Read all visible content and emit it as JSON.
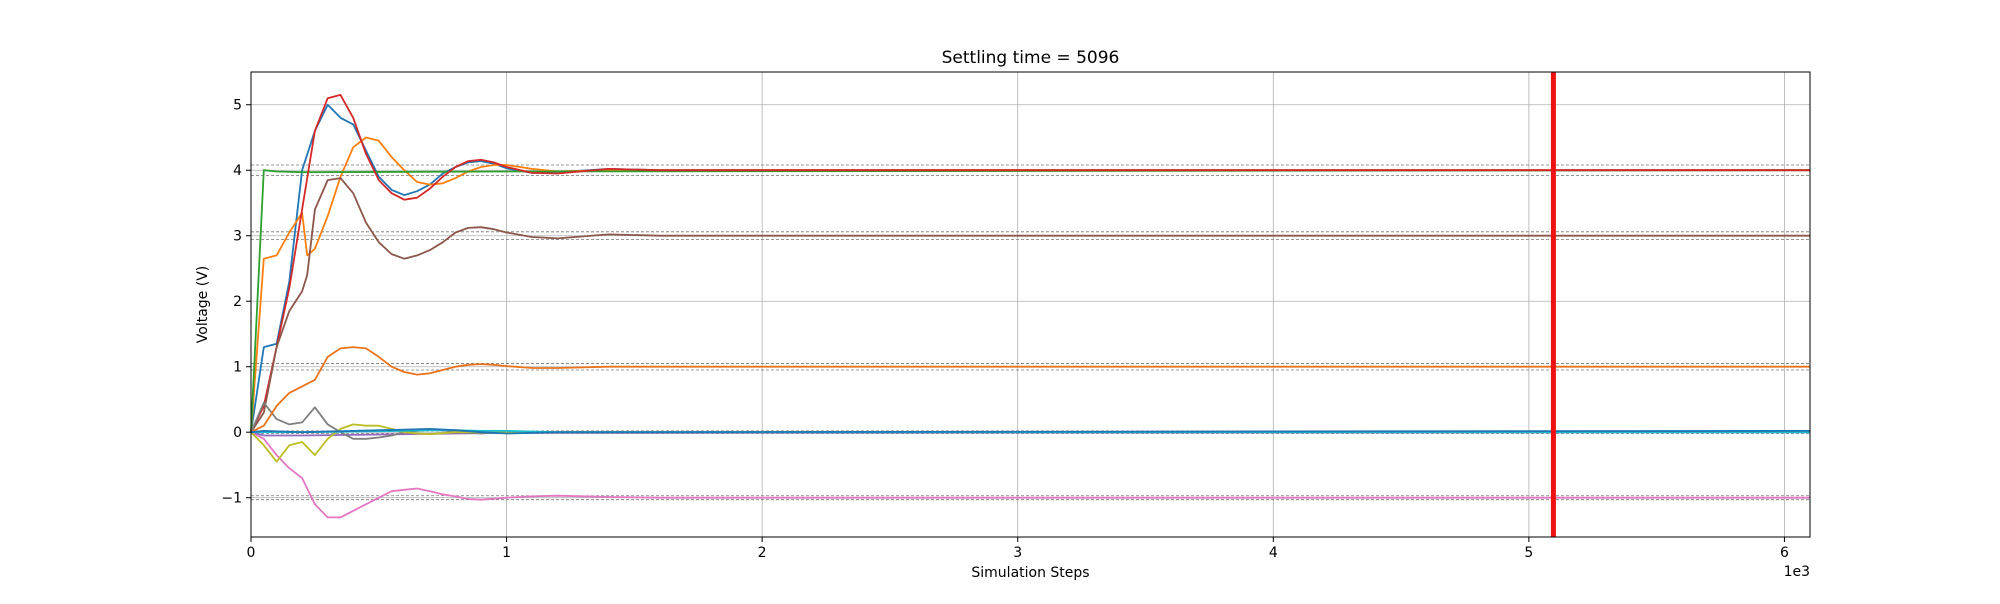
{
  "chart_data": {
    "type": "line",
    "title": "Settling time = 5096",
    "xlabel": "Simulation Steps",
    "ylabel": "Voltage (V)",
    "x_offset_text": "1e3",
    "xlim": [
      0,
      6100
    ],
    "ylim": [
      -1.6,
      5.5
    ],
    "xticks": [
      0,
      1000,
      2000,
      3000,
      4000,
      5000,
      6000
    ],
    "xtick_labels": [
      "0",
      "1",
      "2",
      "3",
      "4",
      "5",
      "6"
    ],
    "yticks": [
      -1,
      0,
      1,
      2,
      3,
      4,
      5
    ],
    "ytick_labels": [
      "−1",
      "0",
      "1",
      "2",
      "3",
      "4",
      "5"
    ],
    "grid": true,
    "settling_time_marker": {
      "x": 5096,
      "color": "#ee1111"
    },
    "tolerance_bands": [
      {
        "center": 4,
        "band": [
          3.92,
          4.08
        ]
      },
      {
        "center": 3,
        "band": [
          2.94,
          3.06
        ]
      },
      {
        "center": 1,
        "band": [
          0.95,
          1.05
        ]
      },
      {
        "center": 0,
        "band": [
          -0.02,
          0.02
        ]
      },
      {
        "center": -1,
        "band": [
          -1.03,
          -0.97
        ]
      }
    ],
    "series": [
      {
        "color": "#1f77b4",
        "points": [
          [
            0,
            0
          ],
          [
            50,
            1.3
          ],
          [
            100,
            1.35
          ],
          [
            150,
            2.3
          ],
          [
            200,
            4.0
          ],
          [
            250,
            4.6
          ],
          [
            300,
            5.0
          ],
          [
            350,
            4.8
          ],
          [
            400,
            4.7
          ],
          [
            450,
            4.3
          ],
          [
            500,
            3.9
          ],
          [
            550,
            3.7
          ],
          [
            600,
            3.62
          ],
          [
            650,
            3.68
          ],
          [
            700,
            3.78
          ],
          [
            750,
            3.95
          ],
          [
            800,
            4.05
          ],
          [
            850,
            4.12
          ],
          [
            900,
            4.14
          ],
          [
            950,
            4.1
          ],
          [
            1000,
            4.03
          ],
          [
            1100,
            3.96
          ],
          [
            1200,
            3.97
          ],
          [
            1400,
            4.02
          ],
          [
            1600,
            4.0
          ],
          [
            1800,
            4.0
          ],
          [
            6100,
            4.0
          ]
        ]
      },
      {
        "color": "#ff7f0e",
        "points": [
          [
            0,
            0
          ],
          [
            50,
            2.65
          ],
          [
            100,
            2.7
          ],
          [
            150,
            3.05
          ],
          [
            200,
            3.35
          ],
          [
            220,
            2.7
          ],
          [
            250,
            2.8
          ],
          [
            300,
            3.3
          ],
          [
            350,
            3.9
          ],
          [
            400,
            4.35
          ],
          [
            450,
            4.5
          ],
          [
            500,
            4.45
          ],
          [
            550,
            4.2
          ],
          [
            600,
            4.0
          ],
          [
            650,
            3.82
          ],
          [
            700,
            3.78
          ],
          [
            750,
            3.8
          ],
          [
            800,
            3.88
          ],
          [
            850,
            3.98
          ],
          [
            900,
            4.05
          ],
          [
            950,
            4.08
          ],
          [
            1000,
            4.08
          ],
          [
            1100,
            4.02
          ],
          [
            1200,
            3.98
          ],
          [
            1400,
            4.0
          ],
          [
            6100,
            4.0
          ]
        ]
      },
      {
        "color": "#2ca02c",
        "points": [
          [
            0,
            0
          ],
          [
            50,
            4.0
          ],
          [
            100,
            3.98
          ],
          [
            200,
            3.97
          ],
          [
            1000,
            3.98
          ],
          [
            6100,
            4.0
          ]
        ]
      },
      {
        "color": "#d62728",
        "points": [
          [
            0,
            0
          ],
          [
            50,
            0.4
          ],
          [
            100,
            1.3
          ],
          [
            150,
            2.2
          ],
          [
            200,
            3.4
          ],
          [
            250,
            4.6
          ],
          [
            300,
            5.1
          ],
          [
            350,
            5.15
          ],
          [
            400,
            4.8
          ],
          [
            450,
            4.25
          ],
          [
            500,
            3.85
          ],
          [
            550,
            3.65
          ],
          [
            600,
            3.55
          ],
          [
            650,
            3.58
          ],
          [
            700,
            3.72
          ],
          [
            750,
            3.9
          ],
          [
            800,
            4.05
          ],
          [
            850,
            4.14
          ],
          [
            900,
            4.16
          ],
          [
            950,
            4.12
          ],
          [
            1000,
            4.05
          ],
          [
            1100,
            3.96
          ],
          [
            1200,
            3.95
          ],
          [
            1400,
            4.02
          ],
          [
            1600,
            4.0
          ],
          [
            6100,
            4.0
          ]
        ]
      },
      {
        "color": "#9467bd",
        "points": [
          [
            0,
            0
          ],
          [
            50,
            -0.05
          ],
          [
            100,
            -0.05
          ],
          [
            200,
            -0.05
          ],
          [
            1000,
            -0.01
          ],
          [
            6100,
            0.0
          ]
        ]
      },
      {
        "color": "#8c564b",
        "points": [
          [
            0,
            0
          ],
          [
            50,
            0.3
          ],
          [
            100,
            1.3
          ],
          [
            150,
            1.85
          ],
          [
            200,
            2.15
          ],
          [
            220,
            2.4
          ],
          [
            250,
            3.4
          ],
          [
            300,
            3.85
          ],
          [
            350,
            3.88
          ],
          [
            400,
            3.65
          ],
          [
            450,
            3.2
          ],
          [
            500,
            2.9
          ],
          [
            550,
            2.72
          ],
          [
            600,
            2.65
          ],
          [
            650,
            2.7
          ],
          [
            700,
            2.78
          ],
          [
            750,
            2.9
          ],
          [
            800,
            3.05
          ],
          [
            850,
            3.12
          ],
          [
            900,
            3.13
          ],
          [
            950,
            3.1
          ],
          [
            1000,
            3.05
          ],
          [
            1100,
            2.98
          ],
          [
            1200,
            2.96
          ],
          [
            1400,
            3.02
          ],
          [
            1600,
            3.0
          ],
          [
            6100,
            3.0
          ]
        ]
      },
      {
        "color": "#e377c2",
        "points": [
          [
            0,
            0
          ],
          [
            50,
            -0.1
          ],
          [
            100,
            -0.35
          ],
          [
            150,
            -0.55
          ],
          [
            200,
            -0.7
          ],
          [
            250,
            -1.1
          ],
          [
            300,
            -1.3
          ],
          [
            350,
            -1.3
          ],
          [
            400,
            -1.2
          ],
          [
            450,
            -1.1
          ],
          [
            500,
            -1.0
          ],
          [
            550,
            -0.9
          ],
          [
            600,
            -0.88
          ],
          [
            650,
            -0.86
          ],
          [
            700,
            -0.9
          ],
          [
            750,
            -0.95
          ],
          [
            800,
            -0.98
          ],
          [
            850,
            -1.02
          ],
          [
            900,
            -1.03
          ],
          [
            1000,
            -1.0
          ],
          [
            1100,
            -0.98
          ],
          [
            1200,
            -0.97
          ],
          [
            1400,
            -0.99
          ],
          [
            1600,
            -1.0
          ],
          [
            6100,
            -1.0
          ]
        ]
      },
      {
        "color": "#7f7f7f",
        "points": [
          [
            0,
            0
          ],
          [
            50,
            0.45
          ],
          [
            100,
            0.2
          ],
          [
            150,
            0.12
          ],
          [
            200,
            0.15
          ],
          [
            250,
            0.38
          ],
          [
            300,
            0.12
          ],
          [
            350,
            0.0
          ],
          [
            400,
            -0.1
          ],
          [
            450,
            -0.1
          ],
          [
            500,
            -0.08
          ],
          [
            550,
            -0.05
          ],
          [
            600,
            0.0
          ],
          [
            650,
            0.02
          ],
          [
            700,
            0.04
          ],
          [
            750,
            0.03
          ],
          [
            800,
            0.0
          ],
          [
            900,
            -0.02
          ],
          [
            1000,
            0.0
          ],
          [
            1200,
            0.0
          ],
          [
            6100,
            0.0
          ]
        ]
      },
      {
        "color": "#bcbd22",
        "points": [
          [
            0,
            0
          ],
          [
            50,
            -0.2
          ],
          [
            100,
            -0.45
          ],
          [
            150,
            -0.2
          ],
          [
            200,
            -0.15
          ],
          [
            250,
            -0.35
          ],
          [
            300,
            -0.1
          ],
          [
            350,
            0.05
          ],
          [
            400,
            0.12
          ],
          [
            450,
            0.1
          ],
          [
            500,
            0.1
          ],
          [
            550,
            0.05
          ],
          [
            600,
            0.0
          ],
          [
            650,
            -0.02
          ],
          [
            700,
            -0.03
          ],
          [
            800,
            0.0
          ],
          [
            1000,
            0.0
          ],
          [
            6100,
            0.01
          ]
        ]
      },
      {
        "color": "#17becf",
        "points": [
          [
            0,
            0
          ],
          [
            50,
            0.0
          ],
          [
            200,
            0.0
          ],
          [
            600,
            0.02
          ],
          [
            700,
            0.03
          ],
          [
            800,
            0.03
          ],
          [
            900,
            0.02
          ],
          [
            1000,
            0.02
          ],
          [
            1200,
            0.0
          ],
          [
            6100,
            0.0
          ]
        ]
      },
      {
        "color": "#e8731c",
        "points": [
          [
            0,
            0
          ],
          [
            50,
            0.1
          ],
          [
            100,
            0.4
          ],
          [
            150,
            0.6
          ],
          [
            200,
            0.7
          ],
          [
            250,
            0.8
          ],
          [
            300,
            1.15
          ],
          [
            350,
            1.28
          ],
          [
            400,
            1.3
          ],
          [
            450,
            1.28
          ],
          [
            500,
            1.15
          ],
          [
            550,
            1.0
          ],
          [
            600,
            0.92
          ],
          [
            650,
            0.88
          ],
          [
            700,
            0.9
          ],
          [
            750,
            0.95
          ],
          [
            800,
            1.0
          ],
          [
            850,
            1.03
          ],
          [
            900,
            1.04
          ],
          [
            950,
            1.03
          ],
          [
            1000,
            1.01
          ],
          [
            1100,
            0.98
          ],
          [
            1200,
            0.98
          ],
          [
            1400,
            1.0
          ],
          [
            6100,
            1.0
          ]
        ]
      },
      {
        "color": "#1f77b4",
        "points": [
          [
            0,
            0
          ],
          [
            50,
            0.02
          ],
          [
            200,
            0.0
          ],
          [
            600,
            0.04
          ],
          [
            700,
            0.05
          ],
          [
            800,
            0.03
          ],
          [
            900,
            0.0
          ],
          [
            1000,
            -0.02
          ],
          [
            1200,
            0.0
          ],
          [
            6100,
            0.02
          ]
        ]
      }
    ]
  }
}
